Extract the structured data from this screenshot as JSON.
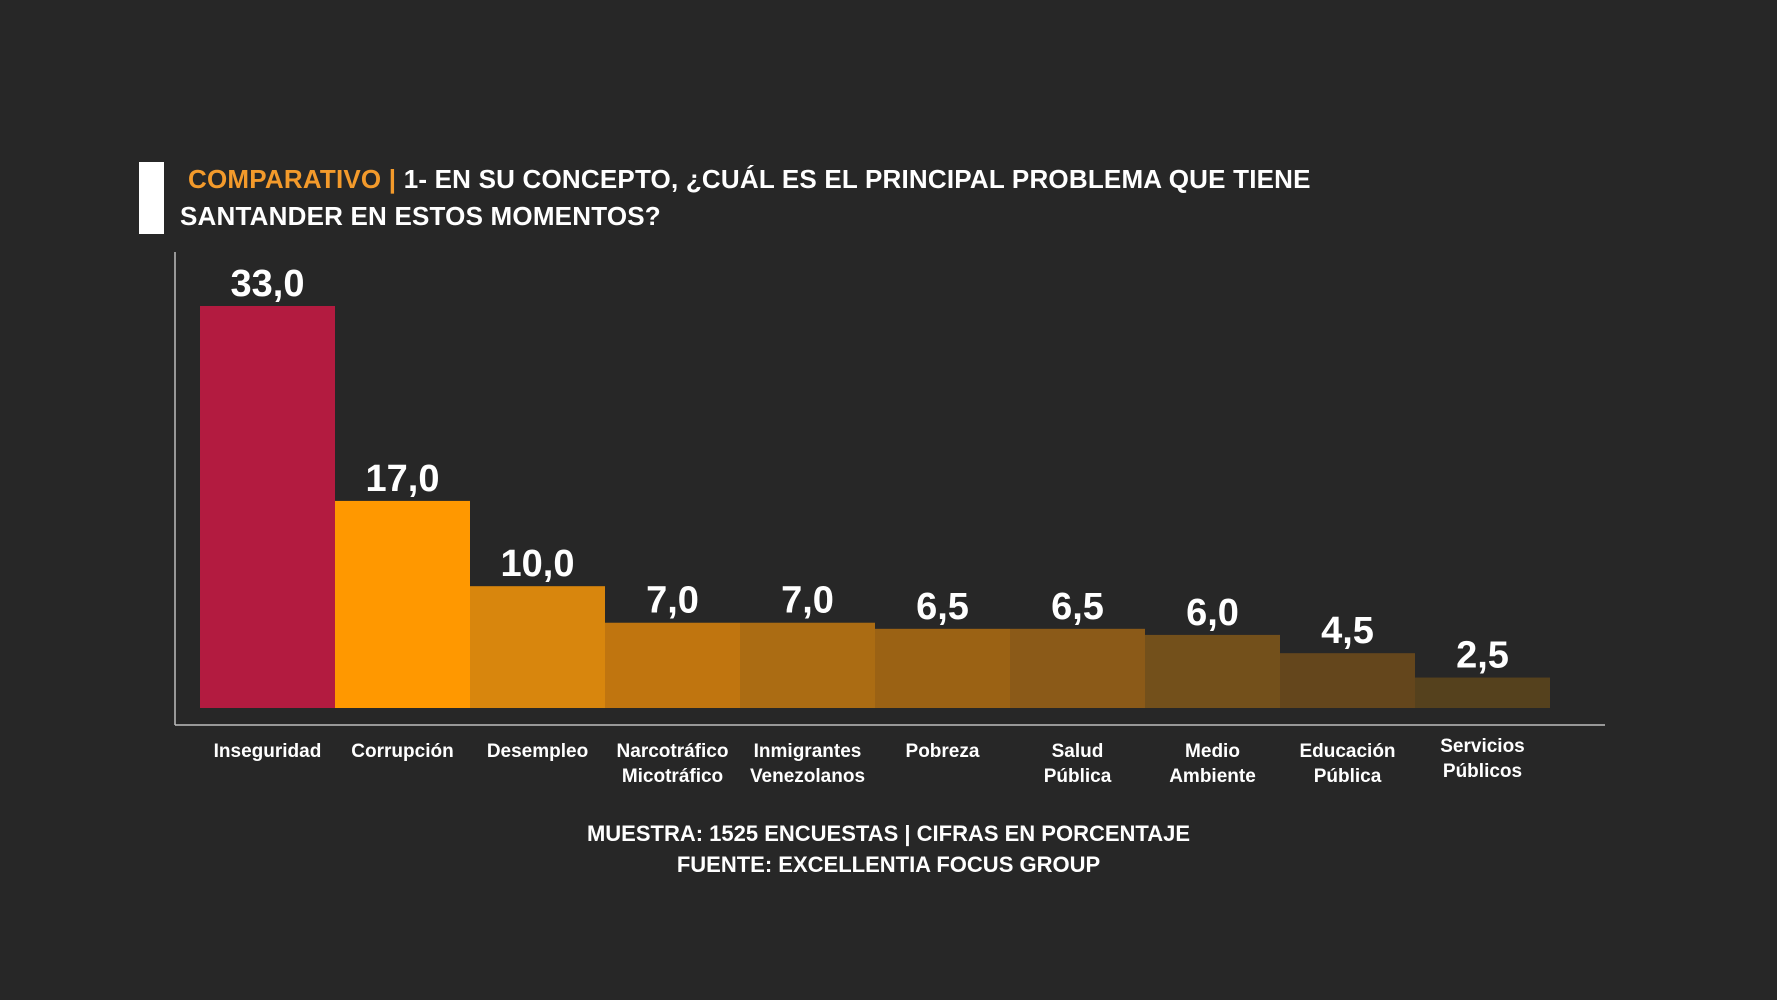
{
  "title": {
    "prefix": "COMPARATIVO |",
    "line1": "1- EN SU CONCEPTO, ¿CUÁL ES EL PRINCIPAL PROBLEMA QUE TIENE",
    "line2": "SANTANDER EN  ESTOS MOMENTOS?"
  },
  "footer": {
    "line1": "MUESTRA: 1525 ENCUESTAS | CIFRAS EN PORCENTAJE",
    "line2": "FUENTE: EXCELLENTIA FOCUS GROUP"
  },
  "colors": {
    "background": "#272727",
    "prefix": "#f39a2b",
    "bars": [
      "#b31b40",
      "#ff9800",
      "#d8860d",
      "#c0750f",
      "#ab6c13",
      "#9b6214",
      "#8b5a18",
      "#73501b",
      "#64461c",
      "#55411d"
    ]
  },
  "chart_data": {
    "type": "bar",
    "categories": [
      [
        "Inseguridad"
      ],
      [
        "Corrupción"
      ],
      [
        "Desempleo"
      ],
      [
        "Narcotráfico",
        "Micotráfico"
      ],
      [
        "Inmigrantes",
        "Venezolanos"
      ],
      [
        "Pobreza"
      ],
      [
        "Salud",
        "Pública"
      ],
      [
        "Medio",
        "Ambiente"
      ],
      [
        "Educación",
        "Pública"
      ],
      [
        "Servicios",
        "Públicos"
      ]
    ],
    "values": [
      33.0,
      17.0,
      10.0,
      7.0,
      7.0,
      6.5,
      6.5,
      6.0,
      4.5,
      2.5
    ],
    "value_labels": [
      "33,0",
      "17,0",
      "10,0",
      "7,0",
      "7,0",
      "6,5",
      "6,5",
      "6,0",
      "4,5",
      "2,5"
    ],
    "ylim": [
      0,
      33
    ],
    "grid": false,
    "legend": "none"
  }
}
